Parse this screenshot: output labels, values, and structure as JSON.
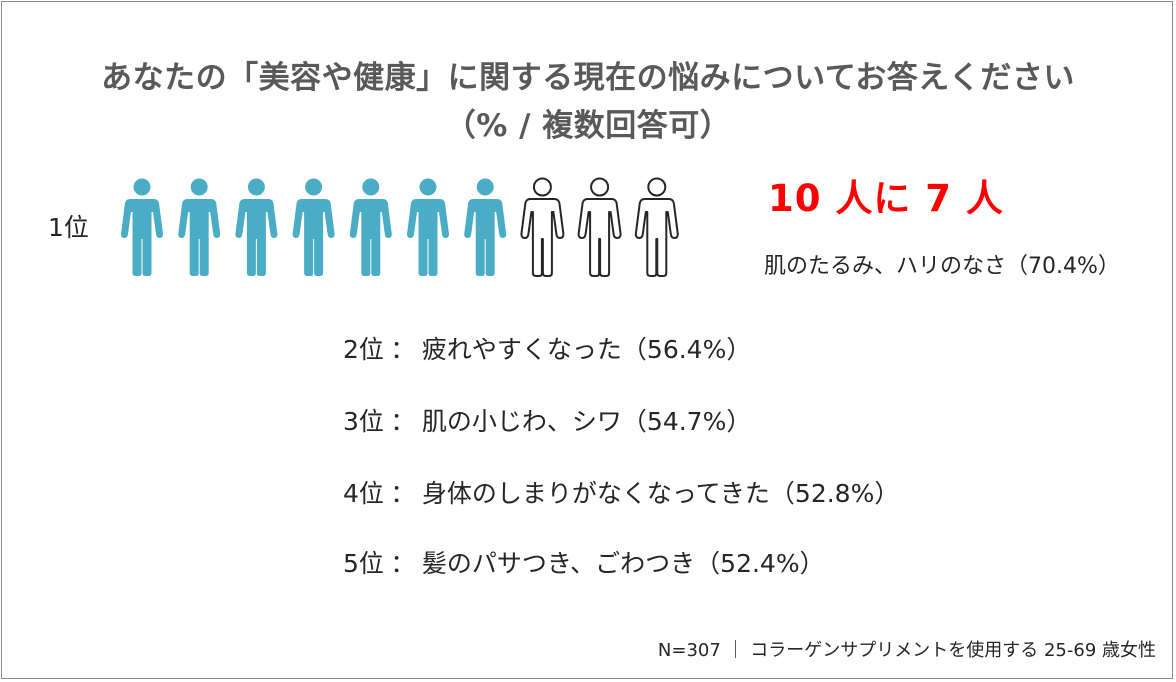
{
  "title_line1": "あなたの「美容や健康」に関する現在の悩みについてお答えください",
  "title_line2": "（%  /  複数回答可）",
  "chart_data": {
    "type": "pictogram",
    "total_icons": 10,
    "filled_icons": 7.04,
    "colors": {
      "filled": "#4bacc6",
      "outline": "#262626",
      "headline": "#ff0000"
    },
    "headline": "10 人に 7 人",
    "rank1": {
      "rank_label": "1位",
      "item": "肌のたるみ、ハリのなさ（70.4%）",
      "value": 70.4
    },
    "ranking": [
      {
        "rank_label": "2位",
        "item": "疲れやすくなった（56.4%）",
        "value": 56.4
      },
      {
        "rank_label": "3位",
        "item": "肌の小じわ、シワ（54.7%）",
        "value": 54.7
      },
      {
        "rank_label": "4位",
        "item": "身体のしまりがなくなってきた（52.8%）",
        "value": 52.8
      },
      {
        "rank_label": "5位",
        "item": "髪のパサつき、ごわつき（52.4%）",
        "value": 52.4
      }
    ]
  },
  "separator": "：",
  "footnote": "N=307 ｜ コラーゲンサプリメントを使用する 25-69 歳女性"
}
